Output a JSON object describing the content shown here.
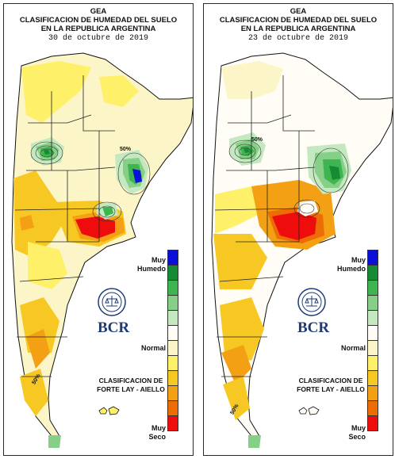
{
  "colors": {
    "muy_humedo": "#0a10d8",
    "humedo_dark": "#178b34",
    "humedo_mid": "#3fb551",
    "humedo_light": "#86cf86",
    "normal_wet": "#c4e8c0",
    "normal": "#fffdf5",
    "normal_dry": "#fbf5c8",
    "seco_light": "#fff06a",
    "seco": "#f7c823",
    "seco_mid": "#f3a015",
    "muy_seco": "#ec6c06",
    "extremo": "#ee0c0c"
  },
  "legend_swatches": [
    "#0a10d8",
    "#178b34",
    "#3fb551",
    "#86cf86",
    "#c4e8c0",
    "#fffdf5",
    "#fbf5c8",
    "#fff06a",
    "#f7c823",
    "#f3a015",
    "#ec6c06",
    "#ee0c0c"
  ],
  "maps": [
    {
      "header": {
        "line1": "GEA",
        "line2": "CLASIFICACION DE HUMEDAD DEL SUELO",
        "line3": "EN LA REPUBLICA ARGENTINA",
        "date": "30 de octubre de 2019"
      },
      "legend": {
        "top_label_1": "Muy",
        "top_label_2": "Humedo",
        "mid_label": "Normal",
        "bottom_label_1": "Muy",
        "bottom_label_2": "Seco"
      },
      "classification": {
        "line1": "CLASIFICACION DE",
        "line2": "FORTE LAY - AIELLO"
      },
      "logo_text": "BCR",
      "contour_labels": [
        "50%",
        "50%"
      ]
    },
    {
      "header": {
        "line1": "GEA",
        "line2": "CLASIFICACION DE HUMEDAD DEL SUELO",
        "line3": "EN LA REPUBLICA ARGENTINA",
        "date": "23 de octubre de 2019"
      },
      "legend": {
        "top_label_1": "Muy",
        "top_label_2": "Humedo",
        "mid_label": "Normal",
        "bottom_label_1": "Muy",
        "bottom_label_2": "Seco"
      },
      "classification": {
        "line1": "CLASIFICACION DE",
        "line2": "FORTE LAY - AIELLO"
      },
      "logo_text": "BCR",
      "contour_labels": [
        "50%",
        "50%"
      ]
    }
  ]
}
